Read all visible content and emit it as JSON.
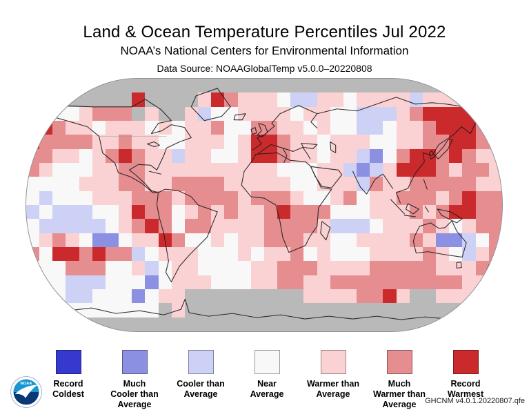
{
  "header": {
    "title": "Land & Ocean Temperature Percentiles Jul 2022",
    "subtitle": "NOAA’s National Centers for Environmental Information",
    "data_source": "Data Source: NOAAGlobalTemp v5.0.0–20220808"
  },
  "legend": {
    "items": [
      {
        "key": "record_coldest",
        "label_lines": [
          "Record",
          "Coldest"
        ],
        "color": "#3539cd"
      },
      {
        "key": "much_cooler",
        "label_lines": [
          "Much",
          "Cooler than",
          "Average"
        ],
        "color": "#8b90e3"
      },
      {
        "key": "cooler",
        "label_lines": [
          "Cooler than",
          "Average"
        ],
        "color": "#cdd1f6"
      },
      {
        "key": "near_average",
        "label_lines": [
          "Near",
          "Average"
        ],
        "color": "#f8f8f8"
      },
      {
        "key": "warmer",
        "label_lines": [
          "Warmer than",
          "Average"
        ],
        "color": "#fbd2d3"
      },
      {
        "key": "much_warmer",
        "label_lines": [
          "Much",
          "Warmer than",
          "Average"
        ],
        "color": "#e68d90"
      },
      {
        "key": "record_warmest",
        "label_lines": [
          "Record",
          "Warmest"
        ],
        "color": "#cb2a2d"
      }
    ]
  },
  "footer": {
    "version_label": "GHCNM v4.0.1.20220807.qfe",
    "logo_text": "NOAA"
  },
  "chart_data": {
    "type": "heatmap",
    "title": "Land & Ocean Temperature Percentiles Jul 2022",
    "projection": "robinson",
    "categories": [
      "Record Coldest",
      "Much Cooler than Average",
      "Cooler than Average",
      "Near Average",
      "Warmer than Average",
      "Much Warmer than Average",
      "Record Warmest",
      "No Data"
    ],
    "palette": {
      "1": "#3539cd",
      "2": "#8b90e3",
      "3": "#cdd1f6",
      "4": "#f8f8f8",
      "5": "#fbd2d3",
      "6": "#e68d90",
      "7": "#cb2a2d",
      "g": "#b9b9b9"
    },
    "grid_cols": 36,
    "grid_rows": 18,
    "encoding": "one char per 10-degree cell, row 0 = 90N-80N, col 0 = 180W-170W",
    "rows": [
      "gggggggggggggggggggggggggggggggggggg",
      "gggggggg7gggg57655543355455553555ggg",
      "55445666g5gg53445555455443335677776g",
      "776554555454556446655454433455677766",
      "766665565544555457765545554455667766",
      "665545676553554457765545532467767655",
      "654445566555555555544455323577765665",
      "444455566556666555554455536556666655",
      "434445556665666656665445645566656766",
      "343334457664565655676664445556567766",
      "433333456764665555666653334555654566",
      "456542245576445455666554455556522346",
      "647767663455544454556454445555654356",
      "444666445345544445566655556666655566",
      "544333444245554445566556666666666555",
      "544334442455ggggggggg55556675gg5555g",
      "ggg4444444g5gggggggggggggggggggggggg",
      "gggggggggggggggggggggggggggggggggggg"
    ]
  }
}
